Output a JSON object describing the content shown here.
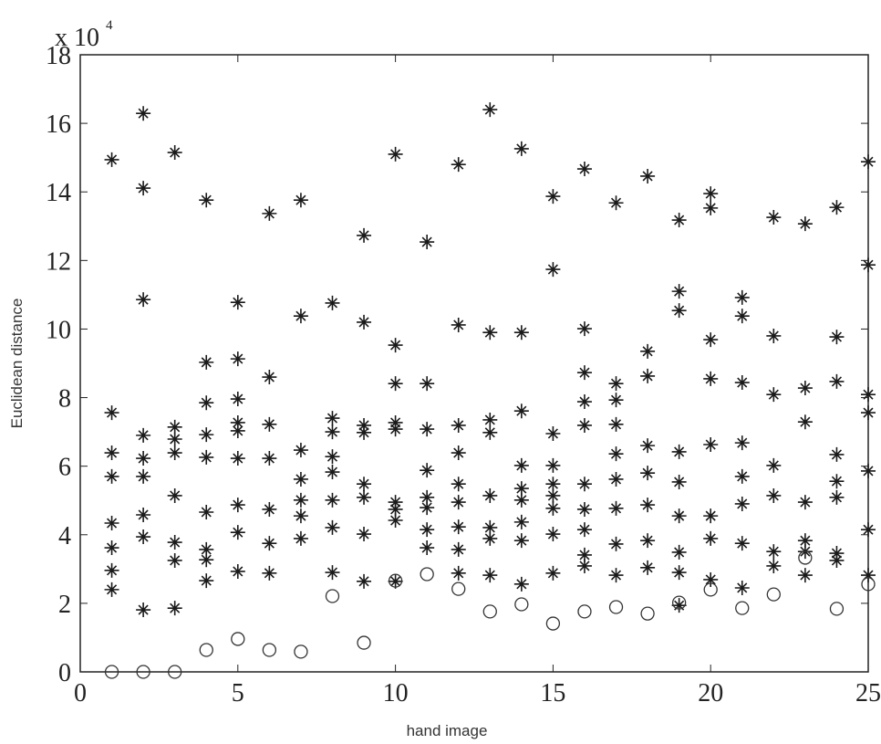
{
  "chart_data": {
    "type": "scatter",
    "x_label": "hand image",
    "y_label": "Euclidean distance",
    "y_multiplier": {
      "base": "x 10",
      "exponent": "4"
    },
    "xlim": [
      0,
      25
    ],
    "ylim": [
      0,
      18
    ],
    "xticks": [
      0,
      5,
      10,
      15,
      20,
      25
    ],
    "yticks": [
      0,
      2,
      4,
      6,
      8,
      10,
      12,
      14,
      16,
      18
    ],
    "grid": false,
    "series": [
      {
        "marker": "star",
        "color": "#1a1a1a",
        "x": [
          1,
          1,
          1,
          1,
          1,
          1,
          1,
          1,
          2,
          2,
          2,
          2,
          2,
          2,
          2,
          2,
          2,
          3,
          3,
          3,
          3,
          3,
          3,
          3,
          3,
          4,
          4,
          4,
          4,
          4,
          4,
          4,
          4,
          4,
          5,
          5,
          5,
          5,
          5,
          5,
          5,
          5,
          5,
          6,
          6,
          6,
          6,
          6,
          6,
          6,
          7,
          7,
          7,
          7,
          7,
          7,
          7,
          8,
          8,
          8,
          8,
          8,
          8,
          8,
          8,
          9,
          9,
          9,
          9,
          9,
          9,
          9,
          9,
          10,
          10,
          10,
          10,
          10,
          10,
          10,
          10,
          10,
          11,
          11,
          11,
          11,
          11,
          11,
          11,
          11,
          12,
          12,
          12,
          12,
          12,
          12,
          12,
          12,
          12,
          13,
          13,
          13,
          13,
          13,
          13,
          13,
          13,
          14,
          14,
          14,
          14,
          14,
          14,
          14,
          14,
          14,
          15,
          15,
          15,
          15,
          15,
          15,
          15,
          15,
          15,
          16,
          16,
          16,
          16,
          16,
          16,
          16,
          16,
          16,
          16,
          17,
          17,
          17,
          17,
          17,
          17,
          17,
          17,
          17,
          18,
          18,
          18,
          18,
          18,
          18,
          18,
          18,
          19,
          19,
          19,
          19,
          19,
          19,
          19,
          19,
          19,
          20,
          20,
          20,
          20,
          20,
          20,
          20,
          20,
          21,
          21,
          21,
          21,
          21,
          21,
          21,
          21,
          22,
          22,
          22,
          22,
          22,
          22,
          22,
          23,
          23,
          23,
          23,
          23,
          23,
          23,
          24,
          24,
          24,
          24,
          24,
          24,
          24,
          24,
          25,
          25,
          25,
          25,
          25,
          25,
          25
        ],
        "values": [
          14.94,
          7.56,
          6.39,
          5.7,
          4.34,
          3.62,
          2.96,
          2.4,
          16.29,
          14.11,
          10.86,
          6.9,
          6.23,
          5.7,
          4.58,
          3.94,
          1.81,
          15.15,
          7.14,
          6.79,
          6.39,
          5.14,
          3.78,
          3.25,
          1.86,
          13.76,
          9.03,
          7.85,
          6.92,
          6.26,
          4.66,
          3.57,
          3.27,
          2.66,
          10.78,
          9.13,
          7.96,
          7.27,
          7.03,
          6.23,
          4.87,
          4.07,
          2.93,
          13.37,
          8.6,
          7.22,
          6.23,
          4.74,
          3.75,
          2.88,
          13.76,
          10.38,
          6.47,
          5.62,
          5.01,
          4.55,
          3.89,
          10.76,
          7.4,
          7.0,
          6.28,
          5.83,
          5.01,
          4.21,
          2.9,
          12.73,
          10.2,
          7.19,
          6.98,
          5.48,
          5.09,
          4.02,
          2.64,
          15.1,
          9.53,
          8.41,
          7.27,
          7.08,
          4.95,
          4.74,
          4.42,
          2.64,
          12.54,
          8.41,
          7.08,
          5.88,
          5.09,
          4.79,
          4.15,
          3.62,
          14.8,
          10.12,
          7.19,
          6.39,
          5.48,
          4.95,
          4.23,
          3.57,
          2.88,
          16.4,
          9.9,
          7.35,
          6.98,
          5.14,
          4.21,
          3.89,
          2.82,
          15.26,
          9.9,
          7.61,
          6.02,
          5.35,
          5.01,
          4.37,
          3.83,
          2.56,
          13.87,
          11.74,
          6.95,
          6.02,
          5.48,
          5.14,
          4.77,
          4.02,
          2.88,
          14.67,
          10.01,
          8.73,
          7.88,
          7.19,
          5.48,
          4.74,
          4.15,
          3.41,
          3.09,
          13.68,
          8.41,
          7.93,
          7.22,
          6.36,
          5.62,
          4.77,
          3.73,
          2.82,
          14.46,
          9.35,
          8.63,
          6.6,
          5.8,
          4.87,
          3.83,
          3.04,
          13.18,
          11.1,
          10.54,
          6.42,
          5.54,
          4.55,
          3.49,
          2.9,
          1.94,
          13.95,
          13.53,
          9.69,
          8.55,
          6.63,
          4.55,
          3.89,
          2.69,
          10.92,
          10.38,
          8.44,
          6.68,
          5.7,
          4.9,
          3.75,
          2.45,
          13.26,
          9.8,
          8.09,
          6.02,
          5.14,
          3.51,
          3.09,
          13.07,
          8.28,
          7.29,
          4.95,
          3.83,
          3.51,
          2.82,
          13.55,
          9.77,
          8.47,
          6.34,
          5.56,
          5.09,
          3.46,
          3.25,
          14.88,
          11.87,
          8.09,
          7.56,
          5.86,
          4.15,
          2.82
        ]
      },
      {
        "marker": "circle",
        "color": "#333333",
        "x": [
          1,
          2,
          3,
          4,
          5,
          6,
          7,
          8,
          9,
          10,
          11,
          12,
          13,
          14,
          15,
          16,
          17,
          18,
          19,
          20,
          21,
          22,
          23,
          24,
          25
        ],
        "values": [
          0,
          0,
          0,
          0.64,
          0.96,
          0.64,
          0.59,
          2.21,
          0.85,
          2.66,
          2.85,
          2.42,
          1.76,
          1.97,
          1.41,
          1.76,
          1.89,
          1.7,
          2.02,
          2.4,
          1.86,
          2.26,
          3.33,
          1.84,
          2.56
        ]
      }
    ]
  }
}
